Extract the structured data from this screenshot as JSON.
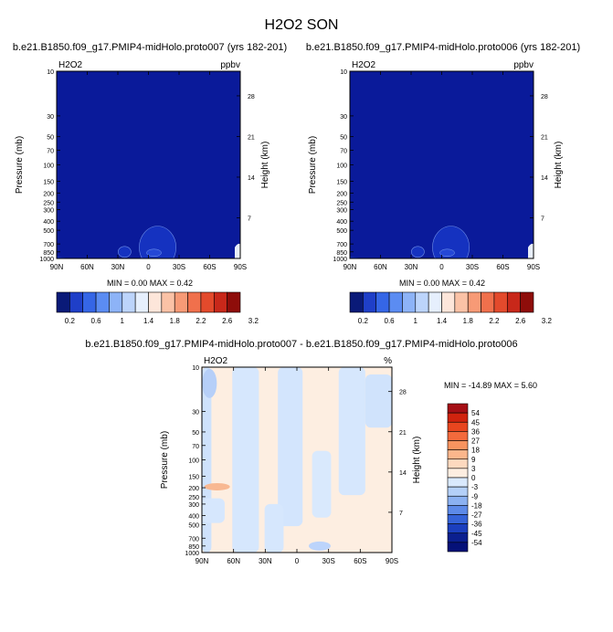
{
  "figure": {
    "title": "H2O2 SON",
    "panel_left_title": "b.e21.B1850.f09_g17.PMIP4-midHolo.proto007 (yrs 182-201)",
    "panel_right_title": "b.e21.B1850.f09_g17.PMIP4-midHolo.proto006 (yrs 182-201)",
    "panel_diff_title": "b.e21.B1850.f09_g17.PMIP4-midHolo.proto007 - b.e21.B1850.f09_g17.PMIP4-midHolo.proto006"
  },
  "chart_data": [
    {
      "type": "heatmap",
      "panel": "left",
      "variable_label": "H2O2",
      "units_label": "ppbv",
      "ylabel": "Pressure (mb)",
      "ylabel_right": "Height (km)",
      "xlabel": "",
      "x_ticks": [
        "90N",
        "60N",
        "30N",
        "0",
        "30S",
        "60S",
        "90S"
      ],
      "y_ticks": [
        "10",
        "30",
        "50",
        "70",
        "100",
        "150",
        "200",
        "250",
        "300",
        "400",
        "500",
        "700",
        "850",
        "1000"
      ],
      "y_ticks_right": [
        "28",
        "21",
        "14",
        "7"
      ],
      "y_scale": "log",
      "stats": {
        "min_label": "MIN =",
        "min": "0.00",
        "max_label": "MAX =",
        "max": "0.42"
      },
      "field": "uniformly ~0-0.2 ppbv, small lower-tropospheric maxima near 20N and 10S",
      "colorbar_labels": [
        "0.2",
        "0.6",
        "1",
        "1.4",
        "1.8",
        "2.2",
        "2.6",
        "3.2"
      ]
    },
    {
      "type": "heatmap",
      "panel": "right",
      "variable_label": "H2O2",
      "units_label": "ppbv",
      "ylabel": "Pressure (mb)",
      "ylabel_right": "Height (km)",
      "xlabel": "",
      "x_ticks": [
        "90N",
        "60N",
        "30N",
        "0",
        "30S",
        "60S",
        "90S"
      ],
      "y_ticks": [
        "10",
        "30",
        "50",
        "70",
        "100",
        "150",
        "200",
        "250",
        "300",
        "400",
        "500",
        "700",
        "850",
        "1000"
      ],
      "y_ticks_right": [
        "28",
        "21",
        "14",
        "7"
      ],
      "y_scale": "log",
      "stats": {
        "min_label": "MIN =",
        "min": "0.00",
        "max_label": "MAX =",
        "max": "0.42"
      },
      "colorbar_labels": [
        "0.2",
        "0.6",
        "1",
        "1.4",
        "1.8",
        "2.2",
        "2.6",
        "3.2"
      ]
    },
    {
      "type": "heatmap",
      "panel": "difference",
      "variable_label": "H2O2",
      "units_label": "%",
      "ylabel": "Pressure (mb)",
      "ylabel_right": "Height (km)",
      "xlabel": "",
      "x_ticks": [
        "90N",
        "60N",
        "30N",
        "0",
        "30S",
        "60S",
        "90S"
      ],
      "y_ticks": [
        "10",
        "30",
        "50",
        "70",
        "100",
        "150",
        "200",
        "250",
        "300",
        "400",
        "500",
        "700",
        "850",
        "1000"
      ],
      "y_ticks_right": [
        "28",
        "21",
        "14",
        "7"
      ],
      "y_scale": "log",
      "stats": {
        "min_label": "MIN =",
        "min": "-14.89",
        "max_label": "MAX =",
        "max": "5.60"
      },
      "colorbar_labels": [
        "54",
        "45",
        "36",
        "27",
        "18",
        "9",
        "3",
        "0",
        "-3",
        "-9",
        "-18",
        "-27",
        "-36",
        "-45",
        "-54"
      ]
    }
  ],
  "colors": {
    "top_palette": [
      "#0a1a78",
      "#1f3fc8",
      "#3566e6",
      "#5b8cf2",
      "#8db3f7",
      "#bcd4fb",
      "#e6effd",
      "#fde6da",
      "#fbc2a6",
      "#f79a76",
      "#f0704c",
      "#e34a2c",
      "#c8281a",
      "#8e0d0a"
    ],
    "diff_palette": [
      "#a50f15",
      "#d0230e",
      "#e8461f",
      "#f36a3c",
      "#f8935f",
      "#fbb68c",
      "#fdd9bf",
      "#fdeee1",
      "#d9e9fd",
      "#b4d0f8",
      "#8bb1f1",
      "#5d8ae8",
      "#3563d8",
      "#1b3fbe",
      "#0b1f8f",
      "#051178"
    ],
    "base_blue": "#0a1a9a",
    "diff_base": "#fdeee1"
  }
}
